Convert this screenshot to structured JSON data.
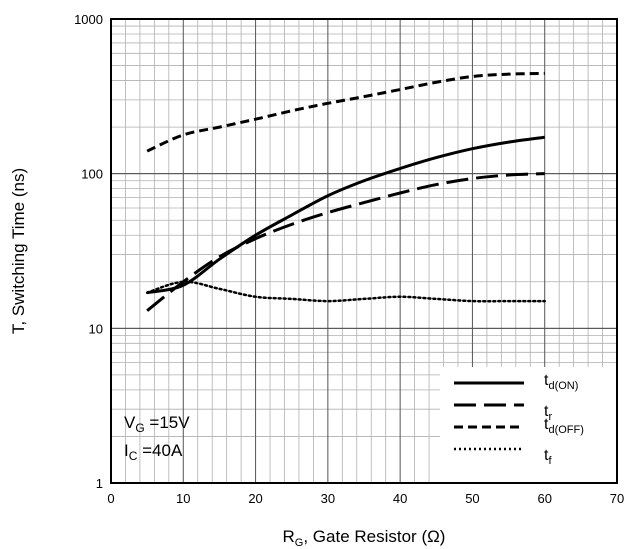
{
  "chart_data": {
    "type": "line",
    "xlabel": {
      "main": "R",
      "sub": "G",
      "rest": ", Gate Resistor (Ω)"
    },
    "ylabel": "T, Switching Time (ns)",
    "xlim": [
      0,
      70
    ],
    "ylim": [
      1,
      1000
    ],
    "yscale": "log",
    "grid": true,
    "legend_position": "bottom-right",
    "x_ticks": [
      0,
      10,
      20,
      30,
      40,
      50,
      60,
      70
    ],
    "y_ticks": [
      1,
      10,
      100,
      1000
    ],
    "conditions": [
      {
        "main": "V",
        "sub": "G",
        "rest": " =15V"
      },
      {
        "main": "I",
        "sub": "C",
        "rest": " =40A"
      }
    ],
    "series": [
      {
        "name": "t",
        "name_sub": "d(ON)",
        "style": "solid",
        "x": [
          5,
          10,
          15,
          20,
          25,
          30,
          35,
          40,
          45,
          50,
          55,
          60
        ],
        "y": [
          17,
          19,
          28,
          40,
          54,
          72,
          90,
          108,
          127,
          145,
          160,
          172
        ]
      },
      {
        "name": "t",
        "name_sub": "r",
        "style": "long-dash",
        "x": [
          5,
          10,
          15,
          20,
          25,
          30,
          35,
          40,
          45,
          50,
          55,
          60
        ],
        "y": [
          13,
          20,
          29,
          38,
          47,
          56,
          65,
          75,
          85,
          93,
          98,
          100
        ]
      },
      {
        "name": "t",
        "name_sub": "d(OFF)",
        "style": "short-dash",
        "x": [
          5,
          10,
          15,
          20,
          25,
          30,
          35,
          40,
          45,
          50,
          55,
          60
        ],
        "y": [
          140,
          178,
          200,
          225,
          255,
          285,
          315,
          350,
          390,
          425,
          440,
          445
        ]
      },
      {
        "name": "t",
        "name_sub": "f",
        "style": "dotted",
        "x": [
          5,
          10,
          15,
          20,
          25,
          30,
          35,
          40,
          45,
          50,
          55,
          60
        ],
        "y": [
          17,
          20,
          18,
          16,
          15.5,
          15,
          15.5,
          16,
          15.5,
          15,
          15,
          15
        ]
      }
    ]
  }
}
